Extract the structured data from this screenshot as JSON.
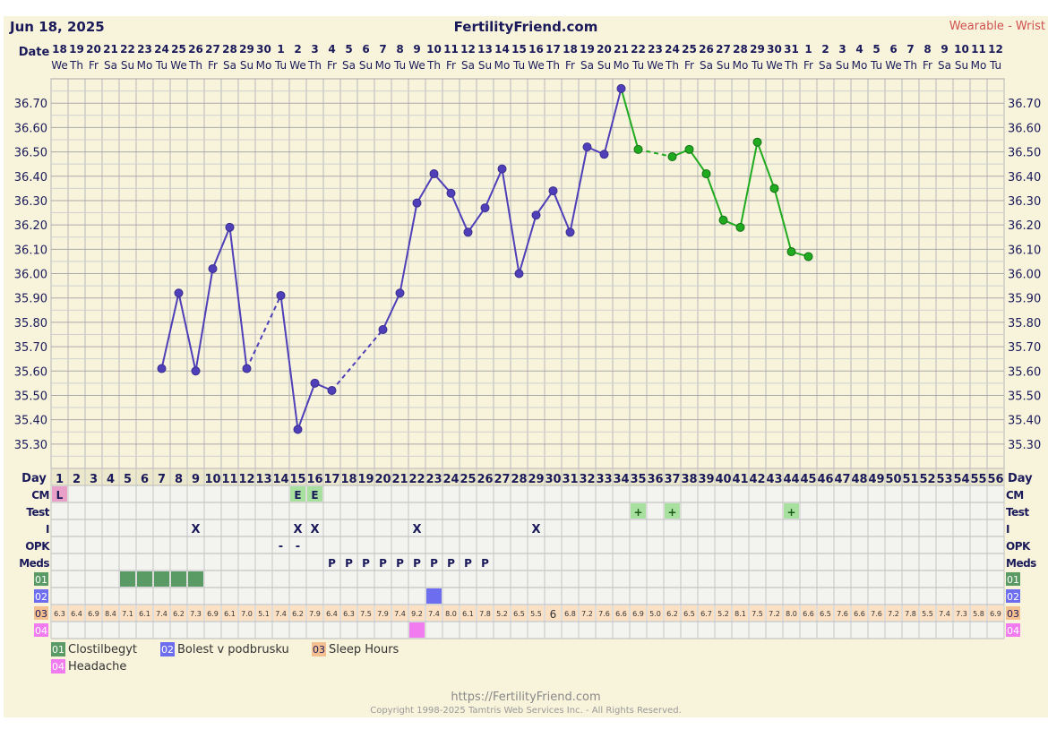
{
  "header": {
    "date": "Jun 18, 2025",
    "site": "FertilityFriend.com",
    "source": "Wearable - Wrist"
  },
  "labels": {
    "date": "Date",
    "day": "Day",
    "rows": [
      "CM",
      "Test",
      "I",
      "OPK",
      "Meds"
    ],
    "custom_codes": [
      "01",
      "02",
      "03",
      "04"
    ]
  },
  "dates": [
    "18",
    "19",
    "20",
    "21",
    "22",
    "23",
    "24",
    "25",
    "26",
    "27",
    "28",
    "29",
    "30",
    "1",
    "2",
    "3",
    "4",
    "5",
    "6",
    "7",
    "8",
    "9",
    "10",
    "11",
    "12",
    "13",
    "14",
    "15",
    "16",
    "17",
    "18",
    "19",
    "20",
    "21",
    "22",
    "23",
    "24",
    "25",
    "26",
    "27",
    "28",
    "29",
    "30",
    "31",
    "1",
    "2",
    "3",
    "4",
    "5",
    "6",
    "7",
    "8",
    "9",
    "10",
    "11",
    "12"
  ],
  "weekdays": [
    "We",
    "Th",
    "Fr",
    "Sa",
    "Su",
    "Mo",
    "Tu"
  ],
  "days": [
    "1",
    "2",
    "3",
    "4",
    "5",
    "6",
    "7",
    "8",
    "9",
    "10",
    "11",
    "12",
    "13",
    "14",
    "15",
    "16",
    "17",
    "18",
    "19",
    "20",
    "21",
    "22",
    "23",
    "24",
    "25",
    "26",
    "27",
    "28",
    "29",
    "30",
    "31",
    "32",
    "33",
    "34",
    "35",
    "36",
    "37",
    "38",
    "39",
    "40",
    "41",
    "42",
    "43",
    "44",
    "45",
    "46",
    "47",
    "48",
    "49",
    "50",
    "51",
    "52",
    "53",
    "54",
    "55",
    "56"
  ],
  "chart_data": {
    "type": "line",
    "ylim": [
      35.2,
      36.8
    ],
    "yticks": [
      "35.30",
      "35.40",
      "35.50",
      "35.60",
      "35.70",
      "35.80",
      "35.90",
      "36.00",
      "36.10",
      "36.20",
      "36.30",
      "36.40",
      "36.50",
      "36.60",
      "36.70"
    ],
    "series": [
      {
        "color": "#4f3fb8",
        "points": [
          [
            7,
            35.61
          ],
          [
            8,
            35.92
          ],
          [
            9,
            35.6
          ],
          [
            10,
            36.02
          ],
          [
            11,
            36.19
          ],
          [
            12,
            35.61
          ],
          [
            14,
            35.91
          ],
          [
            15,
            35.36
          ],
          [
            16,
            35.55
          ],
          [
            17,
            35.52
          ],
          [
            20,
            35.77
          ],
          [
            21,
            35.92
          ],
          [
            22,
            36.29
          ],
          [
            23,
            36.41
          ],
          [
            24,
            36.33
          ],
          [
            25,
            36.17
          ],
          [
            26,
            36.27
          ],
          [
            27,
            36.43
          ],
          [
            28,
            36.0
          ],
          [
            29,
            36.24
          ],
          [
            30,
            36.34
          ],
          [
            31,
            36.17
          ],
          [
            32,
            36.52
          ],
          [
            33,
            36.49
          ],
          [
            34,
            36.76
          ]
        ],
        "dashed_segments": [
          [
            12,
            14
          ],
          [
            17,
            20
          ]
        ]
      },
      {
        "color": "#1faa1f",
        "points": [
          [
            34,
            36.76
          ],
          [
            35,
            36.51
          ],
          [
            37,
            36.48
          ],
          [
            38,
            36.51
          ],
          [
            39,
            36.41
          ],
          [
            40,
            36.22
          ],
          [
            41,
            36.19
          ],
          [
            42,
            36.54
          ],
          [
            43,
            36.35
          ],
          [
            44,
            36.09
          ],
          [
            45,
            36.07
          ]
        ],
        "dashed_segments": [
          [
            35,
            37
          ]
        ]
      }
    ]
  },
  "rows": {
    "cm": [
      {
        "day": 1,
        "text": "L",
        "color": "#e8a0c8"
      },
      {
        "day": 15,
        "text": "E",
        "color": "#a8e0a0"
      },
      {
        "day": 16,
        "text": "E",
        "color": "#a8e0a0"
      }
    ],
    "test": [
      {
        "day": 35,
        "text": "+"
      },
      {
        "day": 37,
        "text": "+"
      },
      {
        "day": 44,
        "text": "+"
      }
    ],
    "intercourse": [
      {
        "day": 9,
        "text": "X"
      },
      {
        "day": 15,
        "text": "X"
      },
      {
        "day": 16,
        "text": "X"
      },
      {
        "day": 22,
        "text": "X"
      },
      {
        "day": 29,
        "text": "X"
      }
    ],
    "opk": [
      {
        "day": 14,
        "text": "-"
      },
      {
        "day": 15,
        "text": "-"
      }
    ],
    "meds": [
      {
        "day": 17,
        "text": "P"
      },
      {
        "day": 18,
        "text": "P"
      },
      {
        "day": 19,
        "text": "P"
      },
      {
        "day": 20,
        "text": "P"
      },
      {
        "day": 21,
        "text": "P"
      },
      {
        "day": 22,
        "text": "P"
      },
      {
        "day": 23,
        "text": "P"
      },
      {
        "day": 24,
        "text": "P"
      },
      {
        "day": 25,
        "text": "P"
      },
      {
        "day": 26,
        "text": "P"
      }
    ],
    "custom01_days": [
      5,
      6,
      7,
      8,
      9
    ],
    "custom02_days": [
      23
    ],
    "custom04_days": [
      22
    ],
    "sleep_hours": [
      "6.3",
      "6.4",
      "6.9",
      "8.4",
      "7.1",
      "6.1",
      "7.4",
      "6.2",
      "7.3",
      "6.9",
      "6.1",
      "7.0",
      "5.1",
      "7.4",
      "6.2",
      "7.9",
      "6.4",
      "6.3",
      "7.5",
      "7.9",
      "7.4",
      "9.2",
      "7.4",
      "8.0",
      "6.1",
      "7.8",
      "5.2",
      "6.5",
      "5.5",
      "6",
      "6.8",
      "7.2",
      "7.6",
      "6.6",
      "6.9",
      "5.0",
      "6.2",
      "6.5",
      "6.7",
      "5.2",
      "8.1",
      "7.5",
      "7.2",
      "8.0",
      "6.6",
      "6.5",
      "7.6",
      "6.6",
      "7.6",
      "7.2",
      "7.8",
      "5.5",
      "7.4",
      "7.3",
      "5.8",
      "6.9"
    ]
  },
  "colors": {
    "custom01": "#5a9a64",
    "custom02": "#6d6df0",
    "custom03": "#f5c090",
    "custom04": "#f07cf0"
  },
  "legend": [
    {
      "code": "01",
      "label": "Clostilbegyt",
      "color": "#5a9a64"
    },
    {
      "code": "02",
      "label": "Bolest v podbrusku",
      "color": "#6d6df0"
    },
    {
      "code": "03",
      "label": "Sleep Hours",
      "color": "#f5c090"
    },
    {
      "code": "04",
      "label": "Headache",
      "color": "#f07cf0"
    }
  ],
  "footer": {
    "url": "https://FertilityFriend.com",
    "copyright": "Copyright 1998-2025 Tamtris Web Services Inc. - All Rights Reserved."
  }
}
